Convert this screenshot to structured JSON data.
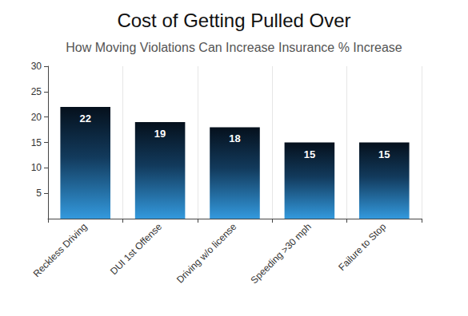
{
  "chart_data": {
    "type": "bar",
    "title": "Cost of Getting Pulled Over",
    "subtitle": "How Moving Violations Can Increase Insurance % Increase",
    "categories": [
      "Reckless Driving",
      "DUI 1st Offense",
      "Driving w/o license",
      "Speeding >30 mph",
      "Failure to Stop"
    ],
    "values": [
      22,
      19,
      18,
      15,
      15
    ],
    "color": "#3399dd",
    "ylim": [
      0,
      30
    ],
    "yticks": [
      5,
      10,
      15,
      20,
      25,
      30
    ],
    "grid": true,
    "data_labels": true
  }
}
